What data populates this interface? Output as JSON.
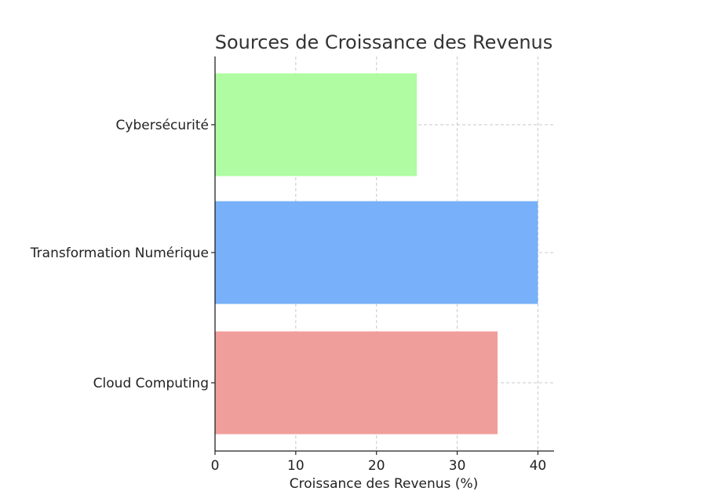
{
  "chart_data": {
    "type": "bar",
    "orientation": "horizontal",
    "title": "Sources de Croissance des Revenus",
    "xlabel": "Croissance des Revenus (%)",
    "ylabel": "",
    "categories": [
      "Cloud Computing",
      "Transformation Numérique",
      "Cybersécurité"
    ],
    "values": [
      35,
      40,
      25
    ],
    "colors": [
      "#f09e9b",
      "#78b0f9",
      "#affca2"
    ],
    "xlim": [
      0,
      42
    ],
    "xticks": [
      0,
      10,
      20,
      30,
      40
    ],
    "grid": true,
    "legend": "none"
  }
}
